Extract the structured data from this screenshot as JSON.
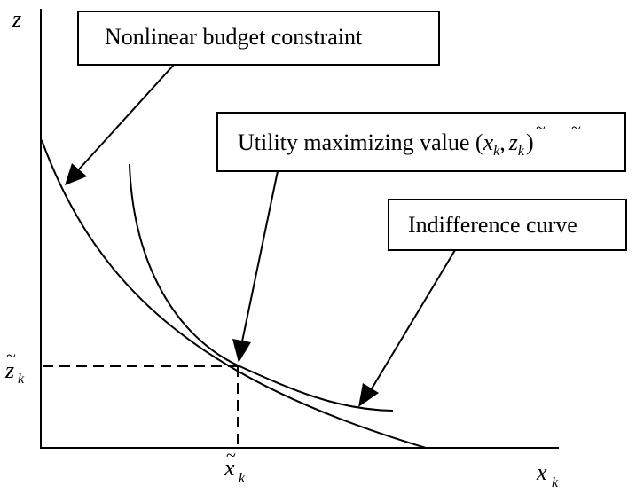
{
  "axes": {
    "y_label": "z",
    "x_label": "x",
    "x_label_sub": "k"
  },
  "ticks": {
    "z_tilde": "z",
    "z_tilde_sub": "k",
    "x_tilde": "x",
    "x_tilde_sub": "k"
  },
  "callouts": {
    "budget": "Nonlinear budget constraint",
    "utility_prefix": "Utility maximizing value (",
    "utility_x": "x",
    "utility_x_sub": "k",
    "utility_comma": ",",
    "utility_z": "z",
    "utility_z_sub": "k",
    "utility_suffix": ")",
    "indifference": "Indifference curve"
  }
}
